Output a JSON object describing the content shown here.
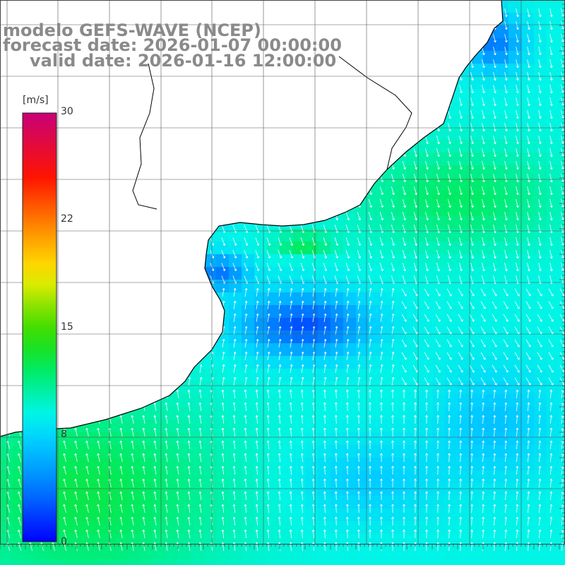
{
  "header": {
    "line1": "modelo GEFS-WAVE (NCEP)",
    "line2": "forecast date: 2026-01-07 00:00:00",
    "line3": "valid date: 2026-01-16 12:00:00"
  },
  "colorbar": {
    "unit": "[m/s]",
    "ticks": [
      "30",
      "22",
      "15",
      "8",
      "0"
    ],
    "min": 0,
    "max": 30
  },
  "map": {
    "variable": "wind speed",
    "field_description": "blue-to-green wind speed field with white wind-direction arrows over ocean; land masked white with black coastline",
    "colors": {
      "land": "#ffffff",
      "grid": "#555555",
      "coast": "#000000",
      "arrows": "#ffffff",
      "axis_labels": "#888888"
    }
  }
}
